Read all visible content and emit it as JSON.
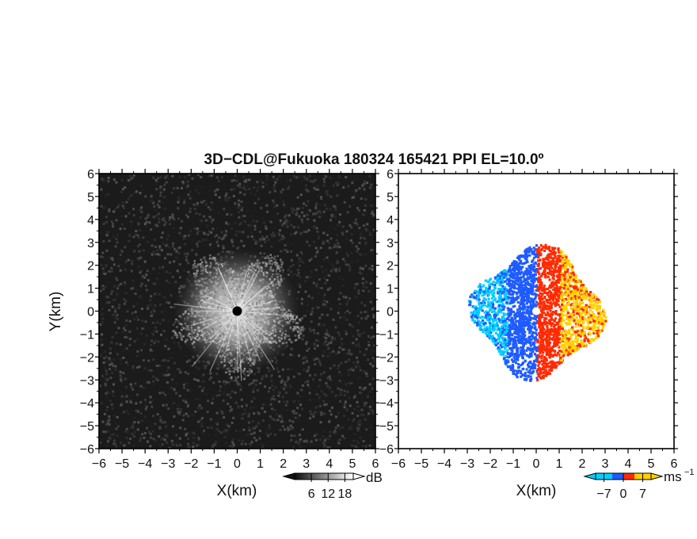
{
  "figure": {
    "title": "3D−CDL@Fukuoka 180324 165421 PPI EL=10.0º"
  },
  "chart_data": [
    {
      "type": "heatmap",
      "panel": "left",
      "quantity": "reflectivity",
      "xlabel": "X(km)",
      "ylabel": "Y(km)",
      "xlim": [
        -6,
        6
      ],
      "ylim": [
        -6,
        6
      ],
      "xticks": [
        "−6",
        "−5",
        "−4",
        "−3",
        "−2",
        "−1",
        "0",
        "1",
        "2",
        "3",
        "4",
        "5",
        "6"
      ],
      "yticks": [
        "6",
        "5",
        "4",
        "3",
        "2",
        "1",
        "0",
        "−1",
        "−2",
        "−3",
        "−4",
        "−5",
        "−6"
      ],
      "echo_radius_km": 2.6,
      "colorbar": {
        "unit": "dB",
        "ticks": [
          "6",
          "12",
          "18"
        ],
        "tick_values": [
          6,
          12,
          18
        ],
        "range": [
          0,
          21
        ],
        "colors": [
          "#000000",
          "#ffffff"
        ]
      }
    },
    {
      "type": "heatmap",
      "panel": "right",
      "quantity": "doppler-velocity",
      "xlabel": "X(km)",
      "ylabel": "",
      "xlim": [
        -6,
        6
      ],
      "ylim": [
        -6,
        6
      ],
      "xticks": [
        "−6",
        "−5",
        "−4",
        "−3",
        "−2",
        "−1",
        "0",
        "1",
        "2",
        "3",
        "4",
        "5",
        "6"
      ],
      "yticks": [
        "6",
        "5",
        "4",
        "3",
        "2",
        "1",
        "0",
        "−1",
        "−2",
        "−3",
        "−4",
        "−5",
        "−6"
      ],
      "echo_radius_km": 2.9,
      "colorbar": {
        "unit": "ms",
        "unit_exp": "−1",
        "ticks": [
          "−7",
          "0",
          "7"
        ],
        "tick_values": [
          -7,
          0,
          7
        ],
        "range": [
          -10,
          10
        ],
        "colors": [
          "#00cfff",
          "#1f5bff",
          "#ff2a00",
          "#ffd000"
        ]
      }
    }
  ]
}
